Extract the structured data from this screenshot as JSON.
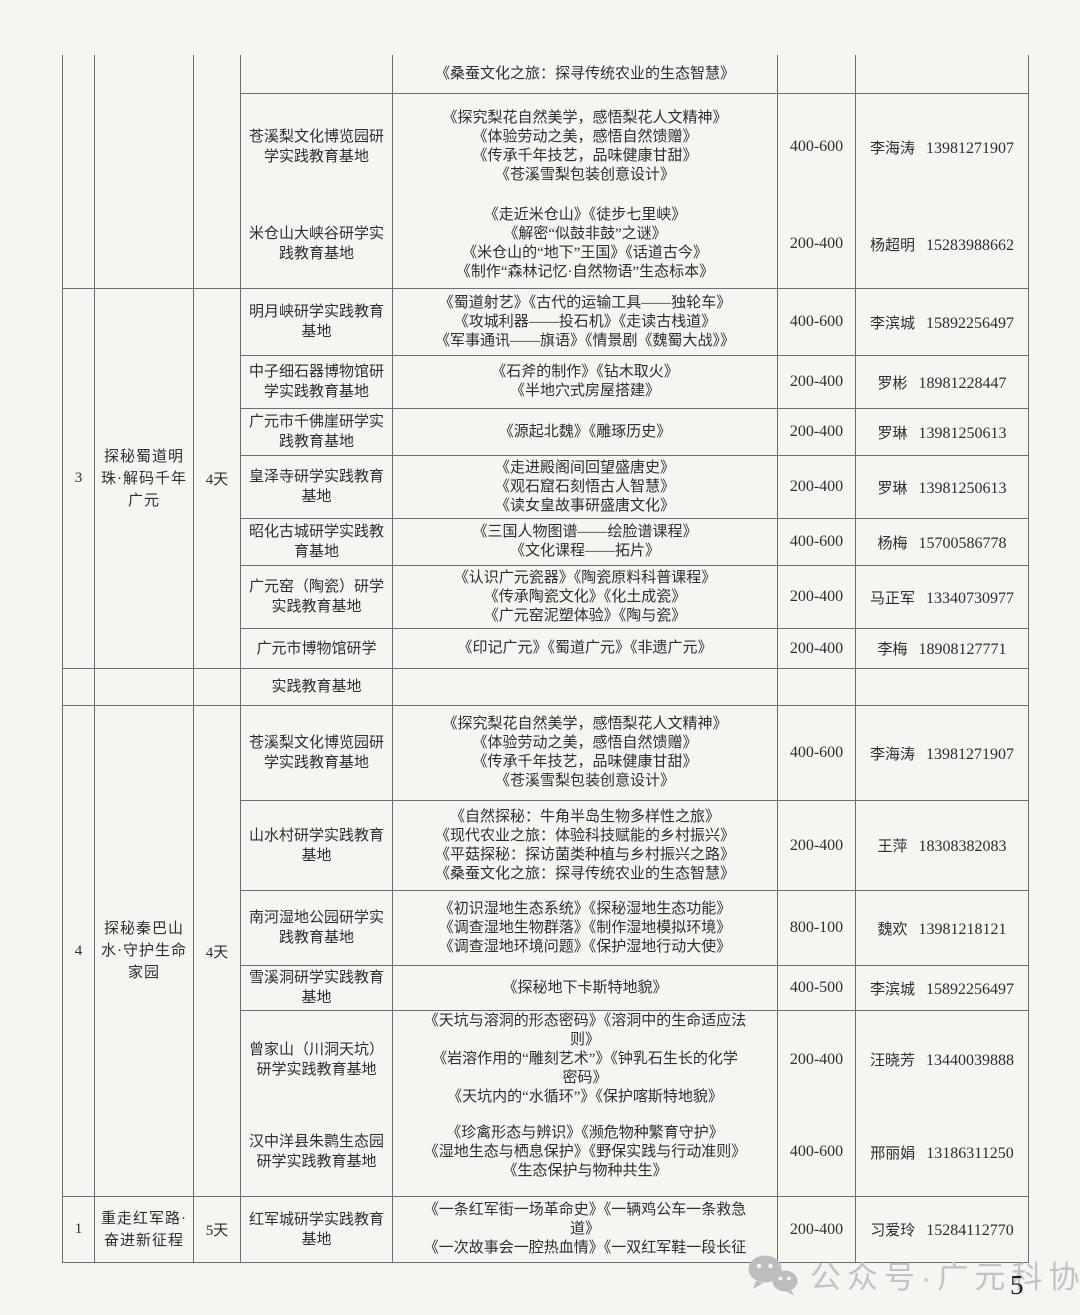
{
  "footer": {
    "watermark": "公众号·广元科协",
    "page_number": "5"
  },
  "table": {
    "sections": [
      {
        "number": "",
        "theme": "",
        "days": "",
        "rows": [
          {
            "base": "",
            "courses": [
              "《桑蚕文化之旅：探寻传统农业的生态智慧》"
            ],
            "price": "",
            "contact_name": "",
            "contact_phone": ""
          },
          {
            "base": "苍溪梨文化博览园研学实践教育基地",
            "courses": [
              "《探究梨花自然美学，感悟梨花人文精神》",
              "《体验劳动之美，感悟自然馈赠》",
              "《传承千年技艺，品味健康甘甜》",
              "《苍溪雪梨包装创意设计》"
            ],
            "price": "400-600",
            "contact_name": "李海涛",
            "contact_phone": "13981271907"
          },
          {
            "base": "米仓山大峡谷研学实践教育基地",
            "courses": [
              "《走近米仓山》《徒步七里峡》",
              "《解密“似鼓非鼓”之谜》",
              "《米仓山的“地下”王国》《话道古今》",
              "《制作“森林记忆·自然物语”生态标本》"
            ],
            "price": "200-400",
            "contact_name": "杨超明",
            "contact_phone": "15283988662",
            "merge_above": true
          }
        ]
      },
      {
        "number": "3",
        "theme": "探秘蜀道明珠·解码千年广元",
        "days": "4天",
        "rows": [
          {
            "base": "明月峡研学实践教育基地",
            "courses": [
              "《蜀道射艺》《古代的运输工具——独轮车》",
              "《攻城利器——投石机》《走读古栈道》",
              "《军事通讯——旗语》《情景剧《魏蜀大战》》"
            ],
            "price": "400-600",
            "contact_name": "李滨城",
            "contact_phone": "15892256497"
          },
          {
            "base": "中子细石器博物馆研学实践教育基地",
            "courses": [
              "《石斧的制作》《钻木取火》",
              "《半地穴式房屋搭建》"
            ],
            "price": "200-400",
            "contact_name": "罗彬",
            "contact_phone": "18981228447"
          },
          {
            "base": "广元市千佛崖研学实践教育基地",
            "courses": [
              "《源起北魏》《雕琢历史》"
            ],
            "price": "200-400",
            "contact_name": "罗琳",
            "contact_phone": "13981250613"
          },
          {
            "base": "皇泽寺研学实践教育基地",
            "courses": [
              "《走进殿阁间回望盛唐史》",
              "《观石窟石刻悟古人智慧》",
              "《读女皇故事研盛唐文化》"
            ],
            "price": "200-400",
            "contact_name": "罗琳",
            "contact_phone": "13981250613"
          },
          {
            "base": "昭化古城研学实践教育基地",
            "courses": [
              "《三国人物图谱——绘脸谱课程》",
              "《文化课程——拓片》"
            ],
            "price": "400-600",
            "contact_name": "杨梅",
            "contact_phone": "15700586778"
          },
          {
            "base": "广元窑（陶瓷）研学实践教育基地",
            "courses": [
              "《认识广元瓷器》《陶瓷原料科普课程》",
              "《传承陶瓷文化》《化土成瓷》",
              "《广元窑泥塑体验》《陶与瓷》"
            ],
            "price": "200-400",
            "contact_name": "马正军",
            "contact_phone": "13340730977"
          },
          {
            "base": "广元市博物馆研学",
            "courses": [
              "《印记广元》《蜀道广元》《非遗广元》"
            ],
            "price": "200-400",
            "contact_name": "李梅",
            "contact_phone": "18908127771"
          }
        ]
      },
      {
        "number": "",
        "theme": "",
        "days": "",
        "rows": [
          {
            "base": "实践教育基地",
            "courses": [],
            "price": "",
            "contact_name": "",
            "contact_phone": ""
          }
        ]
      },
      {
        "number": "4",
        "theme": "探秘秦巴山水·守护生命家园",
        "days": "4天",
        "rows": [
          {
            "base": "苍溪梨文化博览园研学实践教育基地",
            "courses": [
              "《探究梨花自然美学，感悟梨花人文精神》",
              "《体验劳动之美，感悟自然馈赠》",
              "《传承千年技艺，品味健康甘甜》",
              "《苍溪雪梨包装创意设计》"
            ],
            "price": "400-600",
            "contact_name": "李海涛",
            "contact_phone": "13981271907"
          },
          {
            "base": "山水村研学实践教育基地",
            "courses": [
              "《自然探秘：牛角半岛生物多样性之旅》",
              "《现代农业之旅：体验科技赋能的乡村振兴》",
              "《平菇探秘：探访菌类种植与乡村振兴之路》",
              "《桑蚕文化之旅：探寻传统农业的生态智慧》"
            ],
            "price": "200-400",
            "contact_name": "王萍",
            "contact_phone": "18308382083"
          },
          {
            "base": "南河湿地公园研学实践教育基地",
            "courses": [
              "《初识湿地生态系统》《探秘湿地生态功能》",
              "《调查湿地生物群落》《制作湿地模拟环境》",
              "《调查湿地环境问题》《保护湿地行动大使》"
            ],
            "price": "800-100",
            "contact_name": "魏欢",
            "contact_phone": "13981218121"
          },
          {
            "base": "雪溪洞研学实践教育基地",
            "courses": [
              "《探秘地下卡斯特地貌》"
            ],
            "price": "400-500",
            "contact_name": "李滨城",
            "contact_phone": "15892256497"
          },
          {
            "base": "曾家山（川洞天坑）研学实践教育基地",
            "courses": [
              "《天坑与溶洞的形态密码》《溶洞中的生命适应法",
              "则》",
              "《岩溶作用的“雕刻艺术”》《钟乳石生长的化学",
              "密码》",
              "《天坑内的“水循环”》《保护喀斯特地貌》"
            ],
            "price": "200-400",
            "contact_name": "汪晓芳",
            "contact_phone": "13440039888"
          },
          {
            "base": "汉中洋县朱鹮生态园研学实践教育基地",
            "courses": [
              "《珍禽形态与辨识》《濒危物种繁育守护》",
              "《湿地生态与栖息保护》《野保实践与行动准则》",
              "《生态保护与物种共生》"
            ],
            "price": "400-600",
            "contact_name": "邢丽娟",
            "contact_phone": "13186311250",
            "merge_above": true
          }
        ]
      },
      {
        "number": "1",
        "theme": "重走红军路·奋进新征程",
        "days": "5天",
        "rows": [
          {
            "base": "红军城研学实践教育基地",
            "courses": [
              "《一条红军街一场革命史》《一辆鸡公车一条救急",
              "道》",
              "《一次故事会一腔热血情》《一双红军鞋一段长征"
            ],
            "price": "200-400",
            "contact_name": "习爱玲",
            "contact_phone": "15284112770"
          }
        ]
      }
    ]
  }
}
